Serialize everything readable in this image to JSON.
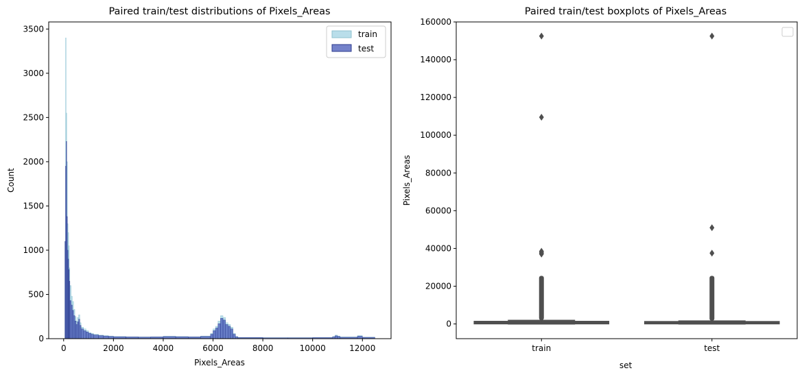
{
  "chart_data": [
    {
      "type": "bar",
      "title": "Paired train/test distributions of Pixels_Areas",
      "xlabel": "Pixels_Areas",
      "ylabel": "Count",
      "xlim": [
        -600,
        13150
      ],
      "ylim": [
        0,
        3580
      ],
      "xticks": [
        "0",
        "2000",
        "4000",
        "6000",
        "8000",
        "10000",
        "12000"
      ],
      "xtick_values": [
        0,
        2000,
        4000,
        6000,
        8000,
        10000,
        12000
      ],
      "yticks": [
        "0",
        "500",
        "1000",
        "1500",
        "2000",
        "2500",
        "3000",
        "3500"
      ],
      "ytick_values": [
        0,
        500,
        1000,
        1500,
        2000,
        2500,
        3000,
        3500
      ],
      "legend": {
        "placement": "top-right",
        "entries": [
          "train",
          "test"
        ]
      },
      "colors": {
        "train": "#add8e6",
        "train_edge": "#8ec1cf",
        "test": "#4658b8",
        "test_edge": "#2b3a8c"
      },
      "series": [
        {
          "name": "train",
          "bins": [
            [
              50,
              75,
              1100
            ],
            [
              75,
              100,
              3400
            ],
            [
              100,
              125,
              2550
            ],
            [
              125,
              150,
              2000
            ],
            [
              150,
              175,
              1300
            ],
            [
              175,
              200,
              1200
            ],
            [
              200,
              225,
              1050
            ],
            [
              225,
              250,
              800
            ],
            [
              250,
              300,
              600
            ],
            [
              300,
              350,
              480
            ],
            [
              350,
              400,
              420
            ],
            [
              400,
              450,
              330
            ],
            [
              450,
              500,
              250
            ],
            [
              500,
              550,
              200
            ],
            [
              550,
              600,
              240
            ],
            [
              600,
              650,
              270
            ],
            [
              650,
              700,
              180
            ],
            [
              700,
              800,
              130
            ],
            [
              800,
              900,
              110
            ],
            [
              900,
              1000,
              90
            ],
            [
              1000,
              1100,
              70
            ],
            [
              1100,
              1200,
              60
            ],
            [
              1200,
              1400,
              50
            ],
            [
              1400,
              1600,
              40
            ],
            [
              1600,
              1800,
              35
            ],
            [
              1800,
              2000,
              30
            ],
            [
              2000,
              2500,
              25
            ],
            [
              2500,
              3000,
              22
            ],
            [
              3000,
              3500,
              20
            ],
            [
              3500,
              4000,
              22
            ],
            [
              4000,
              4500,
              28
            ],
            [
              4500,
              5000,
              25
            ],
            [
              5000,
              5500,
              22
            ],
            [
              5500,
              5900,
              30
            ],
            [
              5900,
              6000,
              60
            ],
            [
              6000,
              6100,
              110
            ],
            [
              6100,
              6200,
              140
            ],
            [
              6200,
              6300,
              200
            ],
            [
              6300,
              6400,
              260
            ],
            [
              6400,
              6500,
              240
            ],
            [
              6500,
              6600,
              180
            ],
            [
              6600,
              6700,
              160
            ],
            [
              6700,
              6800,
              130
            ],
            [
              6800,
              6900,
              60
            ],
            [
              6900,
              7000,
              25
            ],
            [
              7000,
              8000,
              15
            ],
            [
              8000,
              9000,
              12
            ],
            [
              9000,
              10000,
              12
            ],
            [
              10000,
              10800,
              15
            ],
            [
              10800,
              10900,
              25
            ],
            [
              10900,
              11000,
              40
            ],
            [
              11000,
              11100,
              30
            ],
            [
              11100,
              11800,
              20
            ],
            [
              11800,
              12000,
              35
            ],
            [
              12000,
              12500,
              18
            ]
          ]
        },
        {
          "name": "test",
          "bins": [
            [
              50,
              75,
              1100
            ],
            [
              75,
              100,
              1950
            ],
            [
              100,
              125,
              2230
            ],
            [
              125,
              150,
              1380
            ],
            [
              150,
              175,
              1000
            ],
            [
              175,
              200,
              900
            ],
            [
              200,
              225,
              780
            ],
            [
              225,
              250,
              650
            ],
            [
              250,
              300,
              430
            ],
            [
              300,
              350,
              380
            ],
            [
              350,
              400,
              320
            ],
            [
              400,
              450,
              260
            ],
            [
              450,
              500,
              200
            ],
            [
              500,
              550,
              160
            ],
            [
              550,
              600,
              190
            ],
            [
              600,
              650,
              220
            ],
            [
              650,
              700,
              150
            ],
            [
              700,
              800,
              110
            ],
            [
              800,
              900,
              90
            ],
            [
              900,
              1000,
              75
            ],
            [
              1000,
              1100,
              60
            ],
            [
              1100,
              1200,
              50
            ],
            [
              1200,
              1400,
              42
            ],
            [
              1400,
              1600,
              35
            ],
            [
              1600,
              1800,
              30
            ],
            [
              1800,
              2000,
              26
            ],
            [
              2000,
              2500,
              22
            ],
            [
              2500,
              3000,
              20
            ],
            [
              3000,
              3500,
              18
            ],
            [
              3500,
              4000,
              20
            ],
            [
              4000,
              4500,
              24
            ],
            [
              4500,
              5000,
              22
            ],
            [
              5000,
              5500,
              20
            ],
            [
              5500,
              5900,
              26
            ],
            [
              5900,
              6000,
              50
            ],
            [
              6000,
              6100,
              90
            ],
            [
              6100,
              6200,
              120
            ],
            [
              6200,
              6300,
              170
            ],
            [
              6300,
              6400,
              230
            ],
            [
              6400,
              6500,
              210
            ],
            [
              6500,
              6600,
              160
            ],
            [
              6600,
              6700,
              140
            ],
            [
              6700,
              6800,
              110
            ],
            [
              6800,
              6900,
              50
            ],
            [
              6900,
              7000,
              20
            ],
            [
              7000,
              8000,
              13
            ],
            [
              8000,
              9000,
              10
            ],
            [
              9000,
              10000,
              10
            ],
            [
              10000,
              10800,
              12
            ],
            [
              10800,
              10900,
              20
            ],
            [
              10900,
              11000,
              32
            ],
            [
              11000,
              11100,
              25
            ],
            [
              11100,
              11800,
              16
            ],
            [
              11800,
              12000,
              28
            ],
            [
              12000,
              12500,
              15
            ]
          ]
        }
      ]
    },
    {
      "type": "box",
      "title": "Paired train/test boxplots of Pixels_Areas",
      "xlabel": "set",
      "ylabel": "Pixels_Areas",
      "categories": [
        "train",
        "test"
      ],
      "ylim": [
        -7800,
        160000
      ],
      "yticks": [
        "0",
        "20000",
        "40000",
        "60000",
        "80000",
        "100000",
        "120000",
        "140000",
        "160000"
      ],
      "ytick_values": [
        0,
        20000,
        40000,
        60000,
        80000,
        100000,
        120000,
        140000,
        160000
      ],
      "legend": {
        "placement": "top-right",
        "entries": []
      },
      "colors": {
        "box": "#4f4f4f",
        "fill": "#ffffff"
      },
      "boxes": [
        {
          "name": "train",
          "whislo": 0,
          "q1": 80,
          "median": 300,
          "q3": 800,
          "whishi": 1900,
          "outlier_band": [
            2000,
            25500
          ],
          "outliers": [
            37000,
            37500,
            38000,
            38500,
            109500,
            152500
          ]
        },
        {
          "name": "test",
          "whislo": 0,
          "q1": 80,
          "median": 300,
          "q3": 700,
          "whishi": 1600,
          "outlier_band": [
            1700,
            25500
          ],
          "outliers": [
            37500,
            51000,
            152500
          ]
        }
      ]
    }
  ]
}
